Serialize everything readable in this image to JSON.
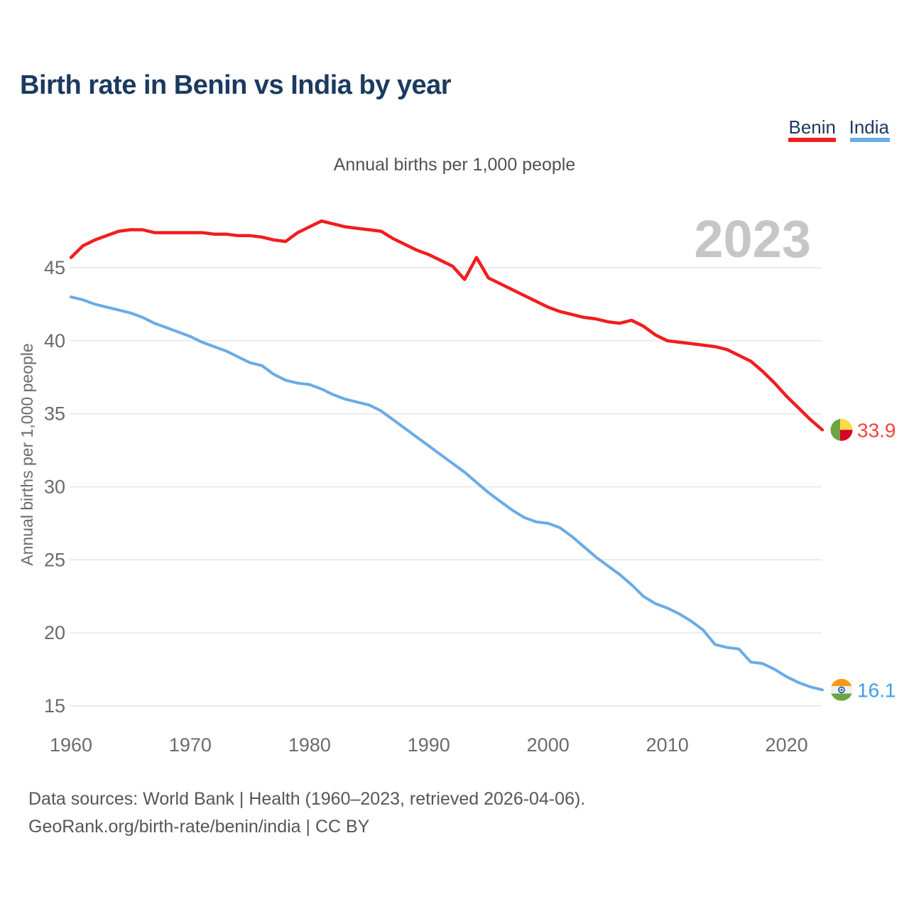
{
  "page": {
    "title": "Birth rate in Benin vs India by year",
    "subtitle": "Annual births per 1,000 people",
    "watermark": "2023",
    "footer_line1": "Data sources: World Bank | Health (1960–2023, retrieved 2026-04-06).",
    "footer_line2": "GeoRank.org/birth-rate/benin/india | CC BY"
  },
  "legend": {
    "position": "top-right",
    "items": [
      {
        "label": "Benin",
        "color": "#f01e1e"
      },
      {
        "label": "India",
        "color": "#6aabe6"
      }
    ]
  },
  "chart_data": {
    "type": "line",
    "title": "Birth rate in Benin vs India by year",
    "ylabel": "Annual births per 1,000 people",
    "xlabel": "",
    "grid": "horizontal",
    "xlim": [
      1960,
      2023
    ],
    "ylim": [
      13.5,
      49.5
    ],
    "y_ticks": [
      45,
      40,
      35,
      30,
      25,
      20,
      15
    ],
    "x_ticks": [
      1960,
      1970,
      1980,
      1990,
      2000,
      2010,
      2020
    ],
    "years": [
      1960,
      1961,
      1962,
      1963,
      1964,
      1965,
      1966,
      1967,
      1968,
      1969,
      1970,
      1971,
      1972,
      1973,
      1974,
      1975,
      1976,
      1977,
      1978,
      1979,
      1980,
      1981,
      1982,
      1983,
      1984,
      1985,
      1986,
      1987,
      1988,
      1989,
      1990,
      1991,
      1992,
      1993,
      1994,
      1995,
      1996,
      1997,
      1998,
      1999,
      2000,
      2001,
      2002,
      2003,
      2004,
      2005,
      2006,
      2007,
      2008,
      2009,
      2010,
      2011,
      2012,
      2013,
      2014,
      2015,
      2016,
      2017,
      2018,
      2019,
      2020,
      2021,
      2022,
      2023
    ],
    "series": [
      {
        "name": "Benin",
        "color": "#f01e1e",
        "label_color": "#f4423b",
        "marker_icon": "benin-flag-icon",
        "end_label": "33.9",
        "values": [
          45.7,
          46.5,
          46.9,
          47.2,
          47.5,
          47.6,
          47.6,
          47.4,
          47.4,
          47.4,
          47.4,
          47.4,
          47.3,
          47.3,
          47.2,
          47.2,
          47.1,
          46.9,
          46.8,
          47.4,
          47.8,
          48.2,
          48.0,
          47.8,
          47.7,
          47.6,
          47.5,
          47.0,
          46.6,
          46.2,
          45.9,
          45.5,
          45.1,
          44.2,
          45.7,
          44.3,
          43.9,
          43.5,
          43.1,
          42.7,
          42.3,
          42.0,
          41.8,
          41.6,
          41.5,
          41.3,
          41.2,
          41.4,
          41.0,
          40.4,
          40.0,
          39.9,
          39.8,
          39.7,
          39.6,
          39.4,
          39.0,
          38.6,
          37.9,
          37.1,
          36.2,
          35.4,
          34.6,
          33.9
        ]
      },
      {
        "name": "India",
        "color": "#6aabe6",
        "label_color": "#3f9de8",
        "marker_icon": "india-flag-icon",
        "end_label": "16.1",
        "values": [
          43.0,
          42.8,
          42.5,
          42.3,
          42.1,
          41.9,
          41.6,
          41.2,
          40.9,
          40.6,
          40.3,
          39.9,
          39.6,
          39.3,
          38.9,
          38.5,
          38.3,
          37.7,
          37.3,
          37.1,
          37.0,
          36.7,
          36.3,
          36.0,
          35.8,
          35.6,
          35.2,
          34.6,
          34.0,
          33.4,
          32.8,
          32.2,
          31.6,
          31.0,
          30.3,
          29.6,
          29.0,
          28.4,
          27.9,
          27.6,
          27.5,
          27.2,
          26.6,
          25.9,
          25.2,
          24.6,
          24.0,
          23.3,
          22.5,
          22.0,
          21.7,
          21.3,
          20.8,
          20.2,
          19.2,
          19.0,
          18.9,
          18.0,
          17.9,
          17.5,
          17.0,
          16.6,
          16.3,
          16.1
        ]
      }
    ]
  }
}
